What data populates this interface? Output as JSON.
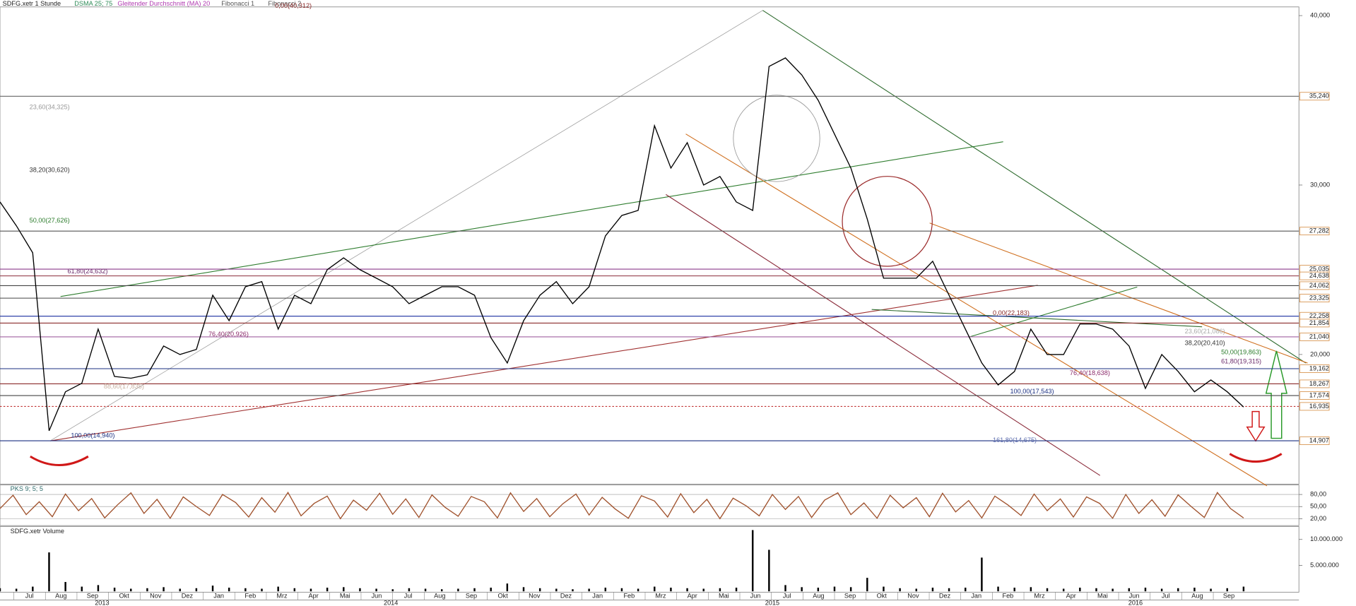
{
  "header": {
    "title": "SDFG.xetr 1 Stunde",
    "legend": [
      "DSMA 25; 75",
      "Gleitender Durchschnitt (MA) 20",
      "Fibonacci 1",
      "Fibonacci 2"
    ]
  },
  "x_axis": {
    "months": [
      "Jul",
      "Aug",
      "Sep",
      "Okt",
      "Nov",
      "Dez",
      "Jan",
      "Feb",
      "Mrz",
      "Apr",
      "Mai",
      "Jun",
      "Jul",
      "Aug",
      "Sep",
      "Okt",
      "Nov",
      "Dez",
      "Jan",
      "Feb",
      "Mrz",
      "Apr",
      "Mai",
      "Jun",
      "Jul",
      "Aug",
      "Sep",
      "Okt",
      "Nov",
      "Dez",
      "Jan",
      "Feb",
      "Mrz",
      "Apr",
      "Mai",
      "Jun",
      "Jul",
      "Aug",
      "Sep"
    ],
    "years": [
      "2013",
      "2014",
      "2015",
      "2016"
    ]
  },
  "chart_data": [
    {
      "type": "line",
      "color": "#000000",
      "values": [
        29,
        27.6,
        26,
        15.5,
        17.8,
        18.3,
        21.5,
        18.7,
        18.6,
        18.8,
        20.5,
        20,
        20.3,
        23.5,
        22,
        24,
        24.3,
        21.5,
        23.5,
        23,
        25,
        25.7,
        25,
        24.5,
        24,
        23,
        23.5,
        24,
        24,
        23.5,
        21,
        19.5,
        22,
        23.5,
        24.3,
        23,
        24,
        27,
        28.2,
        28.5,
        33.5,
        31,
        32.5,
        30,
        30.5,
        29,
        28.5,
        37,
        37.5,
        36.5,
        35,
        33,
        31,
        28,
        24.5,
        24.5,
        24.5,
        25.5,
        23.5,
        21.5,
        19.5,
        18.2,
        19,
        21.5,
        20,
        20,
        21.8,
        21.8,
        21.5,
        20.5,
        18,
        20,
        19,
        17.8,
        18.5,
        17.8,
        16.9
      ],
      "ylim": [
        12.35,
        40.41
      ],
      "yticks": [
        {
          "value": 40,
          "label": "40,000"
        },
        {
          "value": 30,
          "label": "30,000"
        },
        {
          "value": 20,
          "label": "20,000"
        }
      ],
      "levels": [
        {
          "value": 35.24,
          "label": "35,240",
          "color": "#666666"
        },
        {
          "value": 27.282,
          "label": "27,282",
          "color": "#555555"
        },
        {
          "value": 25.035,
          "label": "25,035",
          "color": "#8b3a8b"
        },
        {
          "value": 24.638,
          "label": "24,638",
          "color": "#8b2b3a"
        },
        {
          "value": 24.062,
          "label": "24,062",
          "color": "#444444"
        },
        {
          "value": 23.325,
          "label": "23,325",
          "color": "#444444"
        },
        {
          "value": 22.258,
          "label": "22,258",
          "color": "#1a2fa0"
        },
        {
          "value": 21.854,
          "label": "21,854",
          "color": "#8b2b2b"
        },
        {
          "value": 21.04,
          "label": "21,040",
          "color": "#a060a0"
        },
        {
          "value": 19.162,
          "label": "19,162",
          "color": "#1a2f80"
        },
        {
          "value": 18.267,
          "label": "18,267",
          "color": "#8b2b2b"
        },
        {
          "value": 17.574,
          "label": "17,574",
          "color": "#444444"
        },
        {
          "value": 16.935,
          "label": "16,935",
          "color": "#c03030"
        },
        {
          "value": 14.907,
          "label": "14,907",
          "color": "#1a2f80"
        }
      ],
      "annotations": [
        {
          "value": 40.312,
          "label": "0,00(40,312)",
          "color": "#8b2b2b"
        },
        {
          "value": 34.325,
          "label": "23,60(34,325)",
          "color": "#999999"
        },
        {
          "value": 30.62,
          "label": "38,20(30,620)",
          "color": "#333333"
        },
        {
          "value": 27.626,
          "label": "50,00(27,626)",
          "color": "#2e7d2e"
        },
        {
          "value": 24.632,
          "label": "61,80(24,632)",
          "color": "#6b2b6b"
        },
        {
          "value": 20.926,
          "label": "76,40(20,926)",
          "color": "#8b2b6b"
        },
        {
          "value": 17.835,
          "label": "88,60(17,835)",
          "color": "#c8b0a0"
        },
        {
          "value": 14.94,
          "label": "100,00(14,940)",
          "color": "#1a2f80"
        },
        {
          "value": 22.183,
          "label": "0,00(22,183)",
          "color": "#8b2b2b"
        },
        {
          "value": 21.086,
          "label": "23,60(21,086)",
          "color": "#aaaaaa"
        },
        {
          "value": 20.41,
          "label": "38,20(20,410)",
          "color": "#333333"
        },
        {
          "value": 19.863,
          "label": "50,00(19,863)",
          "color": "#2e7d2e"
        },
        {
          "value": 19.315,
          "label": "61,80(19,315)",
          "color": "#6b2b6b"
        },
        {
          "value": 18.638,
          "label": "76,40(18,638)",
          "color": "#8b2b6b"
        },
        {
          "value": 17.543,
          "label": "100,00(17,543)",
          "color": "#1a2f80"
        },
        {
          "value": 14.675,
          "label": "161,80(14,675)",
          "color": "#6070b0"
        }
      ]
    },
    {
      "type": "line",
      "title": "PKS 9; 5; 5",
      "color": "#a0522d",
      "values": [
        45,
        78,
        30,
        62,
        25,
        81,
        40,
        70,
        22,
        55,
        84,
        33,
        68,
        21,
        74,
        50,
        28,
        80,
        60,
        24,
        72,
        36,
        85,
        27,
        58,
        76,
        20,
        66,
        41,
        83,
        31,
        69,
        23,
        79,
        48,
        26,
        75,
        62,
        22,
        84,
        38,
        70,
        25,
        57,
        81,
        29,
        73,
        44,
        21,
        77,
        64,
        24,
        82,
        35,
        68,
        20,
        71,
        52,
        27,
        80,
        43,
        75,
        23,
        66,
        84,
        30,
        59,
        21,
        78,
        47,
        72,
        25,
        83,
        37,
        65,
        22,
        76,
        54,
        28,
        81,
        40,
        69,
        24,
        74,
        58,
        21,
        80,
        33,
        67,
        26,
        79,
        50,
        23,
        85,
        45,
        22
      ],
      "ylim": [
        5,
        101.4
      ],
      "yticks": [
        {
          "value": 80,
          "label": "80,00"
        },
        {
          "value": 50,
          "label": "50,00"
        },
        {
          "value": 20,
          "label": "20,00"
        }
      ]
    },
    {
      "type": "bar",
      "title": "SDFG.xetr Volume",
      "color": "#000000",
      "values": [
        600000,
        500000,
        900000,
        7500000,
        1800000,
        900000,
        1200000,
        700000,
        500000,
        600000,
        800000,
        500000,
        600000,
        1100000,
        700000,
        600000,
        500000,
        900000,
        600000,
        500000,
        700000,
        800000,
        600000,
        500000,
        400000,
        600000,
        500000,
        400000,
        500000,
        600000,
        700000,
        1500000,
        800000,
        600000,
        500000,
        400000,
        500000,
        700000,
        600000,
        500000,
        900000,
        700000,
        600000,
        500000,
        600000,
        700000,
        11800000,
        8000000,
        1200000,
        800000,
        700000,
        900000,
        800000,
        2600000,
        900000,
        600000,
        500000,
        700000,
        600000,
        700000,
        6500000,
        900000,
        700000,
        800000,
        600000,
        500000,
        700000,
        600000,
        500000,
        600000,
        700000,
        500000,
        600000,
        700000,
        500000,
        600000,
        900000
      ],
      "ylim": [
        0,
        12000000
      ],
      "yticks": [
        {
          "value": 10000000,
          "label": "10.000.000"
        },
        {
          "value": 5000000,
          "label": "5.000.000"
        }
      ]
    }
  ]
}
